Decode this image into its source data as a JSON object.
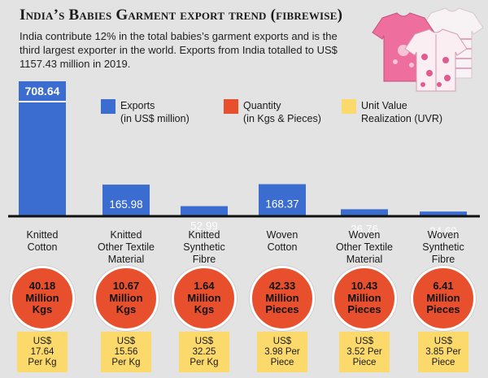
{
  "header": {
    "title": "India’s Babies Garment export trend (fibrewise)",
    "subtitle": "India contribute 12% in the total babies’s garment exports and is the third largest exporter in the world. Exports from India totalled to US$ 1157.43 million in 2019."
  },
  "legend": [
    {
      "label": "Exports\n(in US$ million)",
      "color": "#3b6ccf"
    },
    {
      "label": "Quantity\n(in Kgs & Pieces)",
      "color": "#e8502d"
    },
    {
      "label": "Unit Value\nRealization (UVR)",
      "color": "#fcd96b"
    }
  ],
  "chart_data": {
    "type": "bar",
    "title": "India’s Babies Garment export trend (fibrewise)",
    "categories": [
      "Knitted\nCotton",
      "Knitted\nOther Textile\nMaterial",
      "Knitted\nSynthetic\nFibre",
      "Woven\nCotton",
      "Woven\nOther Textile\nMaterial",
      "Woven\nSynthetic\nFibre"
    ],
    "series": [
      {
        "name": "Exports\n(in US$ million)",
        "values": [
          708.64,
          165.98,
          52.99,
          168.37,
          36.76,
          24.69
        ],
        "color": "#3b6ccf"
      }
    ],
    "value_labels": [
      "708.64",
      "165.98",
      "52.99",
      "168.37",
      "36.76",
      "24.69"
    ],
    "ylim": [
      0,
      708.64
    ],
    "grid": false,
    "legend_position": "top-right"
  },
  "quantity": [
    "40.18\nMillion\nKgs",
    "10.67\nMillion\nKgs",
    "1.64\nMillion\nKgs",
    "42.33\nMillion\nPieces",
    "10.43\nMillion\nPieces",
    "6.41\nMillion\nPieces"
  ],
  "uvr": [
    "US$\n17.64\nPer Kg",
    "US$\n15.56\nPer Kg",
    "US$\n32.25\nPer Kg",
    "US$\n3.98 Per\nPiece",
    "US$\n3.52 Per\nPiece",
    "US$\n3.85 Per\nPiece"
  ],
  "colors": {
    "bar": "#3b6ccf",
    "quantity": "#e8502d",
    "uvr": "#fcd96b",
    "background": "#e3e3e3"
  },
  "icons": {
    "photo": "baby-garments-photo"
  }
}
